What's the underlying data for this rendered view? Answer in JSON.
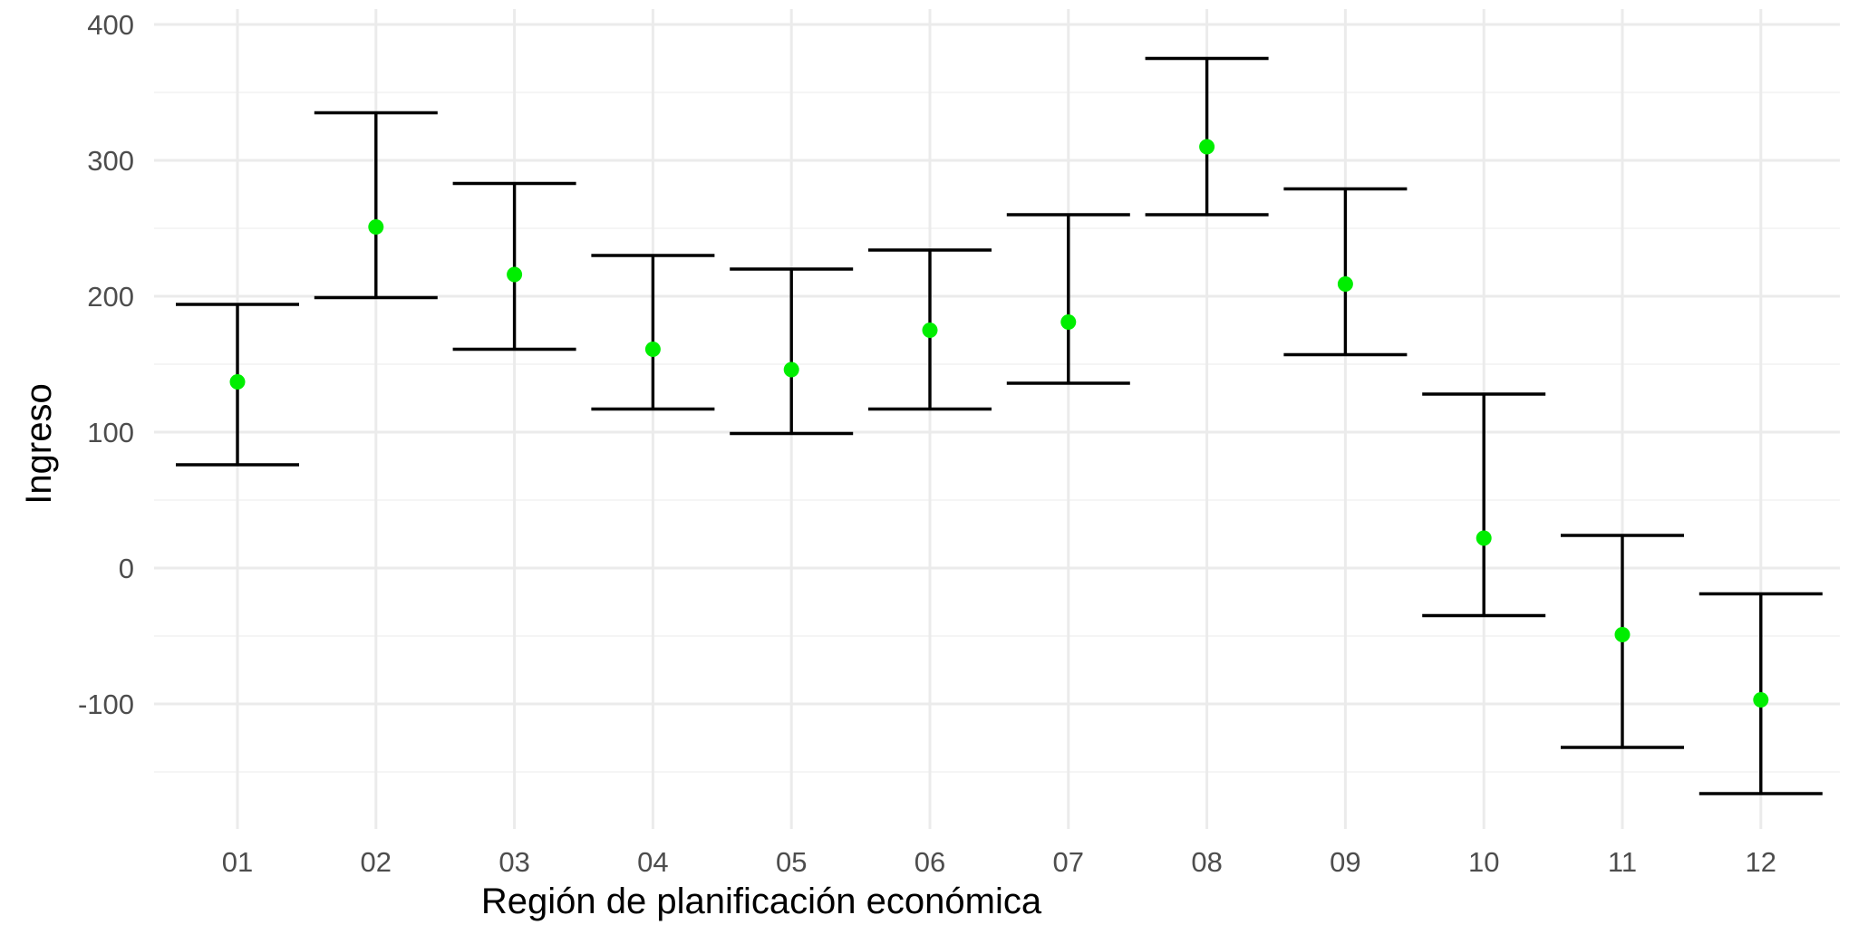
{
  "chart_data": {
    "type": "scatter",
    "title": "",
    "xlabel": "Región de planificación económica",
    "ylabel": "Ingreso",
    "categories": [
      "01",
      "02",
      "03",
      "04",
      "05",
      "06",
      "07",
      "08",
      "09",
      "10",
      "11",
      "12"
    ],
    "y_ticks": [
      -100,
      0,
      100,
      200,
      300,
      400
    ],
    "y_tick_labels": [
      "-100",
      "0",
      "100",
      "200",
      "300",
      "400"
    ],
    "ylim": [
      -180,
      400
    ],
    "grid": true,
    "legend": "none",
    "point_color": "#00ee00",
    "errorbar_color": "#000000",
    "series": [
      {
        "values": [
          137,
          251,
          216,
          161,
          146,
          175,
          181,
          310,
          209,
          22,
          -49,
          -97
        ],
        "lower": [
          76,
          199,
          161,
          117,
          99,
          117,
          136,
          260,
          157,
          -35,
          -132,
          -166
        ],
        "upper": [
          194,
          335,
          283,
          230,
          220,
          234,
          260,
          375,
          279,
          128,
          24,
          -19
        ]
      }
    ]
  }
}
